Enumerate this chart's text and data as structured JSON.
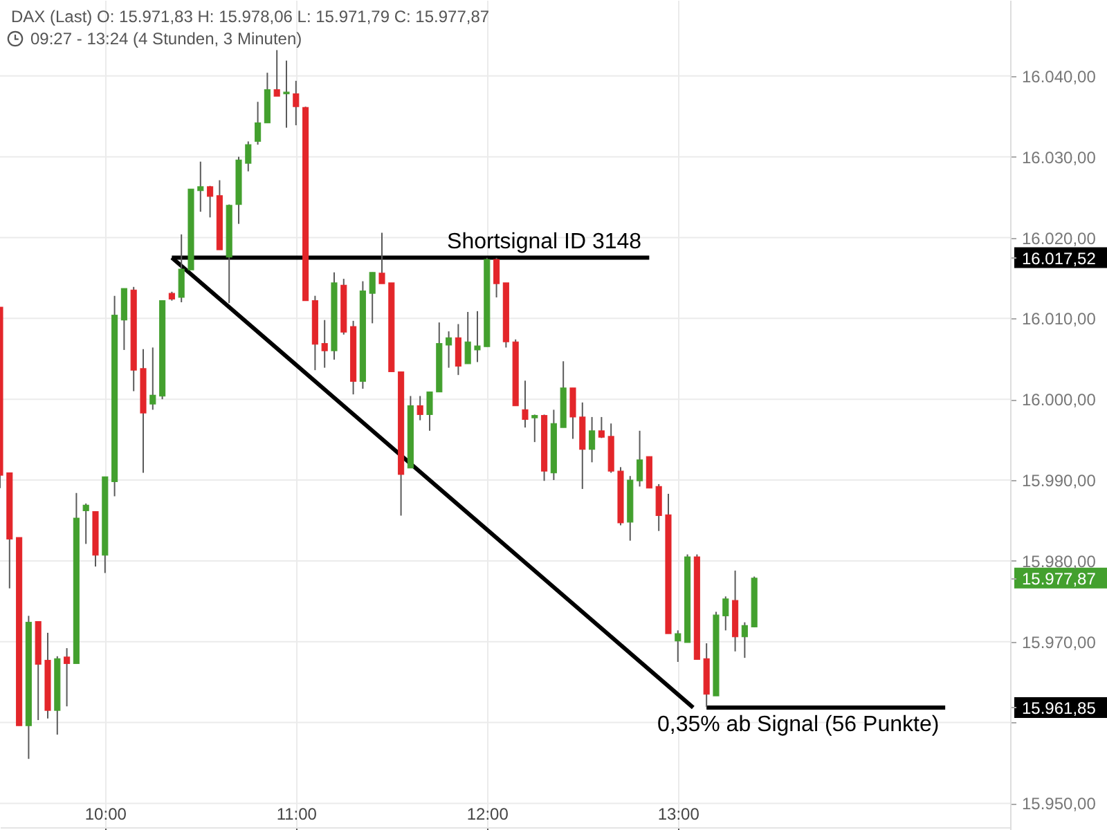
{
  "chart_data": {
    "type": "candlestick",
    "title": "DAX (Last) O: 15.971,83 H: 15.978,06 L: 15.971,79 C: 15.977,87",
    "subtitle": "09:27 - 13:24 (4 Stunden, 3 Minuten)",
    "x": [
      9.45,
      9.5,
      9.55,
      9.6,
      9.65,
      9.7,
      9.75,
      9.8,
      9.85,
      9.9,
      9.95,
      10,
      10.05,
      10.1,
      10.15,
      10.2,
      10.25,
      10.3,
      10.35,
      10.4,
      10.45,
      10.5,
      10.55,
      10.6,
      10.65,
      10.7,
      10.75,
      10.8,
      10.85,
      10.9,
      10.95,
      11,
      11.05,
      11.1,
      11.15,
      11.2,
      11.25,
      11.3,
      11.35,
      11.4,
      11.45,
      11.5,
      11.55,
      11.6,
      11.65,
      11.7,
      11.75,
      11.8,
      11.85,
      11.9,
      11.95,
      12,
      12.05,
      12.1,
      12.15,
      12.2,
      12.25,
      12.3,
      12.35,
      12.4,
      12.45,
      12.5,
      12.55,
      12.6,
      12.65,
      12.7,
      12.75,
      12.8,
      12.85,
      12.9,
      12.95,
      13,
      13.05,
      13.1,
      13.15,
      13.2,
      13.25,
      13.3,
      13.35,
      13.4
    ],
    "ohlc": [
      [
        16011.4,
        16011.4,
        15989.0,
        15990.6
      ],
      [
        15990.9,
        15990.9,
        15976.6,
        15982.7
      ],
      [
        15982.9,
        15982.9,
        15959.6,
        15959.6
      ],
      [
        15959.6,
        15973.2,
        15955.5,
        15972.4
      ],
      [
        15972.5,
        15972.5,
        15960.3,
        15967.2
      ],
      [
        15967.7,
        15971.1,
        15960.5,
        15961.5
      ],
      [
        15961.5,
        15968.2,
        15958.5,
        15967.9
      ],
      [
        15968.1,
        15969.2,
        15962.0,
        15967.3
      ],
      [
        15967.3,
        15988.4,
        15967.3,
        15985.3
      ],
      [
        15986.2,
        15987.1,
        15982.1,
        15986.9
      ],
      [
        15986.1,
        15986.1,
        15979.3,
        15980.7
      ],
      [
        15980.7,
        15990.4,
        15978.5,
        15990.4
      ],
      [
        15989.8,
        16012.8,
        15988.0,
        16010.4
      ],
      [
        16009.8,
        16013.7,
        16006.1,
        16013.7
      ],
      [
        16013.5,
        16013.9,
        16001.0,
        16003.6
      ],
      [
        16003.8,
        16006.2,
        15990.9,
        15998.3
      ],
      [
        15999.4,
        16006.4,
        15998.7,
        16000.5
      ],
      [
        16000.4,
        16012.2,
        16000.0,
        16012.2
      ],
      [
        16013.1,
        16013.3,
        16012.2,
        16012.4
      ],
      [
        16012.6,
        16020.4,
        16012.0,
        16016.1
      ],
      [
        16016.0,
        16026.0,
        16016.0,
        16026.0
      ],
      [
        16025.8,
        16029.4,
        16023.2,
        16026.3
      ],
      [
        16026.3,
        16026.4,
        16022.5,
        16025.1
      ],
      [
        16025.2,
        16027.1,
        16018.5,
        16018.5
      ],
      [
        16017.6,
        16024.1,
        16011.9,
        16024.0
      ],
      [
        16024.1,
        16030.0,
        16021.7,
        16029.6
      ],
      [
        16029.2,
        16031.9,
        16028.2,
        16031.5
      ],
      [
        16031.9,
        16036.8,
        16031.5,
        16034.2
      ],
      [
        16034.2,
        16040.4,
        16034.2,
        16038.3
      ],
      [
        16038.3,
        16043.2,
        16037.5,
        16037.5
      ],
      [
        16037.8,
        16041.9,
        16033.6,
        16038.0
      ],
      [
        16037.8,
        16039.4,
        16033.9,
        16036.2
      ],
      [
        16036.1,
        16036.2,
        16012.2,
        16012.2
      ],
      [
        16012.2,
        16012.8,
        16003.6,
        16006.8
      ],
      [
        16006.9,
        16009.8,
        16003.9,
        16006.0
      ],
      [
        16006.0,
        16015.7,
        16004.9,
        16014.4
      ],
      [
        16014.1,
        16014.9,
        16008.0,
        16008.3
      ],
      [
        16009.0,
        16009.7,
        16000.6,
        16002.2
      ],
      [
        16002.2,
        16014.6,
        16001.3,
        16013.4
      ],
      [
        16013.1,
        16015.7,
        16009.4,
        16015.7
      ],
      [
        16015.6,
        16020.6,
        16014.3,
        16014.3
      ],
      [
        16014.4,
        16014.4,
        16003.4,
        16003.4
      ],
      [
        16003.4,
        16003.4,
        15985.6,
        15990.7
      ],
      [
        15991.5,
        16000.4,
        15991.5,
        15999.2
      ],
      [
        15999.2,
        16000.4,
        15997.4,
        15998.1
      ],
      [
        15998.1,
        16000.9,
        15996.1,
        16000.9
      ],
      [
        16000.9,
        16009.5,
        16000.9,
        16006.9
      ],
      [
        16006.7,
        16008.4,
        16003.9,
        16007.6
      ],
      [
        16007.6,
        16009.3,
        16003.0,
        16004.1
      ],
      [
        16004.4,
        16010.8,
        16004.4,
        16007.1
      ],
      [
        16006.1,
        16010.9,
        16004.6,
        16006.6
      ],
      [
        16006.5,
        16017.5,
        16006.5,
        16017.3
      ],
      [
        16017.3,
        16017.5,
        16012.6,
        16014.3
      ],
      [
        16014.4,
        16014.4,
        16006.4,
        16007.1
      ],
      [
        16007.1,
        16007.4,
        15999.2,
        15999.2
      ],
      [
        15998.7,
        16002.3,
        15996.5,
        15997.5
      ],
      [
        15997.7,
        15998.1,
        15994.7,
        15998.0
      ],
      [
        15998.0,
        15998.1,
        15989.9,
        15991.1
      ],
      [
        15990.9,
        15998.7,
        15990.0,
        15997.0
      ],
      [
        15996.5,
        16004.7,
        15996.5,
        16001.4
      ],
      [
        16001.4,
        16001.4,
        15995.1,
        15997.8
      ],
      [
        15997.8,
        15999.6,
        15988.9,
        15993.8
      ],
      [
        15993.8,
        15997.8,
        15992.2,
        15996.1
      ],
      [
        15996.1,
        15997.8,
        15995.2,
        15995.3
      ],
      [
        15995.4,
        15997.0,
        15990.9,
        15991.1
      ],
      [
        15991.1,
        15991.6,
        15984.4,
        15984.7
      ],
      [
        15984.8,
        15990.5,
        15982.5,
        15990.0
      ],
      [
        15989.9,
        15996.1,
        15989.2,
        15992.5
      ],
      [
        15992.9,
        15992.9,
        15989.0,
        15989.0
      ],
      [
        15989.2,
        15989.5,
        15983.7,
        15985.6
      ],
      [
        15985.7,
        15988.3,
        15971.0,
        15971.0
      ],
      [
        15970.1,
        15971.4,
        15967.5,
        15971.0
      ],
      [
        15969.9,
        15980.8,
        15969.9,
        15980.5
      ],
      [
        15980.5,
        15980.8,
        15967.8,
        15967.8
      ],
      [
        15967.9,
        15969.8,
        15961.9,
        15963.5
      ],
      [
        15963.3,
        15973.7,
        15963.3,
        15973.3
      ],
      [
        15973.2,
        15975.6,
        15971.4,
        15975.3
      ],
      [
        15975.1,
        15978.8,
        15968.8,
        15970.6
      ],
      [
        15970.6,
        15972.4,
        15968.0,
        15972.0
      ],
      [
        15971.83,
        15978.06,
        15971.79,
        15977.87
      ]
    ],
    "colors": [
      "#e3262a",
      "#e3262a",
      "#e3262a",
      "#43a02e",
      "#e3262a",
      "#e3262a",
      "#43a02e",
      "#e3262a",
      "#43a02e",
      "#43a02e",
      "#e3262a",
      "#43a02e",
      "#43a02e",
      "#43a02e",
      "#e3262a",
      "#e3262a",
      "#43a02e",
      "#43a02e",
      "#e3262a",
      "#43a02e",
      "#43a02e",
      "#43a02e",
      "#e3262a",
      "#e3262a",
      "#43a02e",
      "#43a02e",
      "#43a02e",
      "#43a02e",
      "#43a02e",
      "#e3262a",
      "#43a02e",
      "#e3262a",
      "#e3262a",
      "#e3262a",
      "#e3262a",
      "#43a02e",
      "#e3262a",
      "#e3262a",
      "#43a02e",
      "#43a02e",
      "#e3262a",
      "#e3262a",
      "#e3262a",
      "#43a02e",
      "#e3262a",
      "#43a02e",
      "#43a02e",
      "#43a02e",
      "#e3262a",
      "#43a02e",
      "#43a02e",
      "#43a02e",
      "#e3262a",
      "#e3262a",
      "#e3262a",
      "#e3262a",
      "#43a02e",
      "#e3262a",
      "#43a02e",
      "#43a02e",
      "#e3262a",
      "#e3262a",
      "#43a02e",
      "#e3262a",
      "#e3262a",
      "#e3262a",
      "#43a02e",
      "#43a02e",
      "#e3262a",
      "#e3262a",
      "#e3262a",
      "#43a02e",
      "#43a02e",
      "#e3262a",
      "#e3262a",
      "#43a02e",
      "#43a02e",
      "#e3262a",
      "#43a02e",
      "#43a02e"
    ],
    "series": [
      {
        "type": "line",
        "x": [
          10.35,
          12.85
        ],
        "values": [
          16017.52,
          16017.52
        ],
        "color": "#000000"
      },
      {
        "type": "line",
        "x": [
          10.35,
          13.08
        ],
        "values": [
          16017.52,
          15961.85
        ],
        "color": "#000000"
      },
      {
        "type": "line",
        "x": [
          13.15,
          14.4
        ],
        "values": [
          15961.85,
          15961.85
        ],
        "color": "#000000"
      }
    ],
    "xlim": [
      9.45,
      14.74
    ],
    "ylim": [
      15946.7,
      16049.4
    ],
    "xticks": [
      {
        "value": 10,
        "label": "10:00"
      },
      {
        "value": 11,
        "label": "11:00"
      },
      {
        "value": 12,
        "label": "12:00"
      },
      {
        "value": 13,
        "label": "13:00"
      }
    ],
    "yticks": [
      {
        "value": 15950,
        "label": "15.950,00"
      },
      {
        "value": 15960,
        "label": null
      },
      {
        "value": 15961.85,
        "label": "15.961,85"
      },
      {
        "value": 15970,
        "label": "15.970,00"
      },
      {
        "value": 15977.87,
        "label": "15.977,87"
      },
      {
        "value": 15980,
        "label": "15.980,00"
      },
      {
        "value": 15990,
        "label": "15.990,00"
      },
      {
        "value": 16000,
        "label": "16.000,00"
      },
      {
        "value": 16010,
        "label": "16.010,00"
      },
      {
        "value": 16017.52,
        "label": "16.017,52"
      },
      {
        "value": 16020,
        "label": "16.020,00"
      },
      {
        "value": 16030,
        "label": "16.030,00"
      },
      {
        "value": 16040,
        "label": "16.040,00"
      }
    ],
    "grid": true,
    "annotations": [
      {
        "text": "Shortsignal ID 3148",
        "x": 12.3,
        "y": 16017.52
      },
      {
        "text": "0,35% ab Signal (56 Punkte)",
        "x": 13.63,
        "y": 15961.85
      }
    ]
  }
}
